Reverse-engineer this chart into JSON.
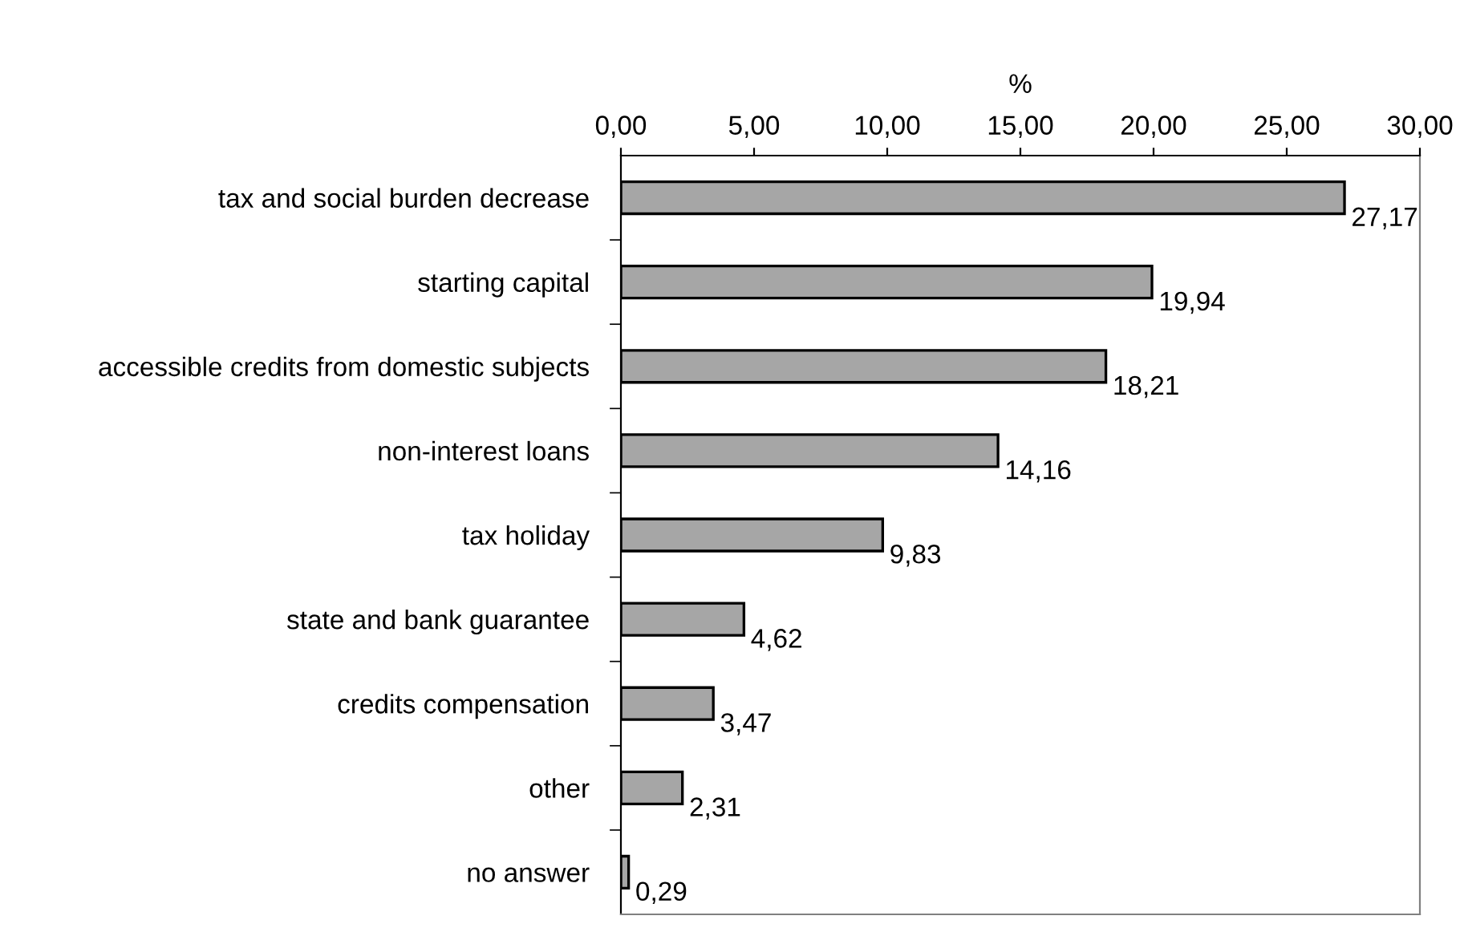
{
  "chart_data": {
    "type": "bar",
    "orientation": "horizontal",
    "xlabel": "%",
    "categories": [
      "tax and social burden decrease",
      "starting capital",
      "accessible credits from domestic subjects",
      "non-interest loans",
      "tax holiday",
      "state and bank guarantee",
      "credits compensation",
      "other",
      "no answer"
    ],
    "values": [
      27.17,
      19.94,
      18.21,
      14.16,
      9.83,
      4.62,
      3.47,
      2.31,
      0.29
    ],
    "value_labels": [
      "27,17",
      "19,94",
      "18,21",
      "14,16",
      "9,83",
      "4,62",
      "3,47",
      "2,31",
      "0,29"
    ],
    "color": "#a6a6a6",
    "xlim": [
      0,
      30
    ],
    "xticks": [
      {
        "value": 0,
        "label": "0,00"
      },
      {
        "value": 5,
        "label": "5,00"
      },
      {
        "value": 10,
        "label": "10,00"
      },
      {
        "value": 15,
        "label": "15,00"
      },
      {
        "value": 20,
        "label": "20,00"
      },
      {
        "value": 25,
        "label": "25,00"
      },
      {
        "value": 30,
        "label": "30,00"
      }
    ],
    "grid": false,
    "legend": false
  }
}
